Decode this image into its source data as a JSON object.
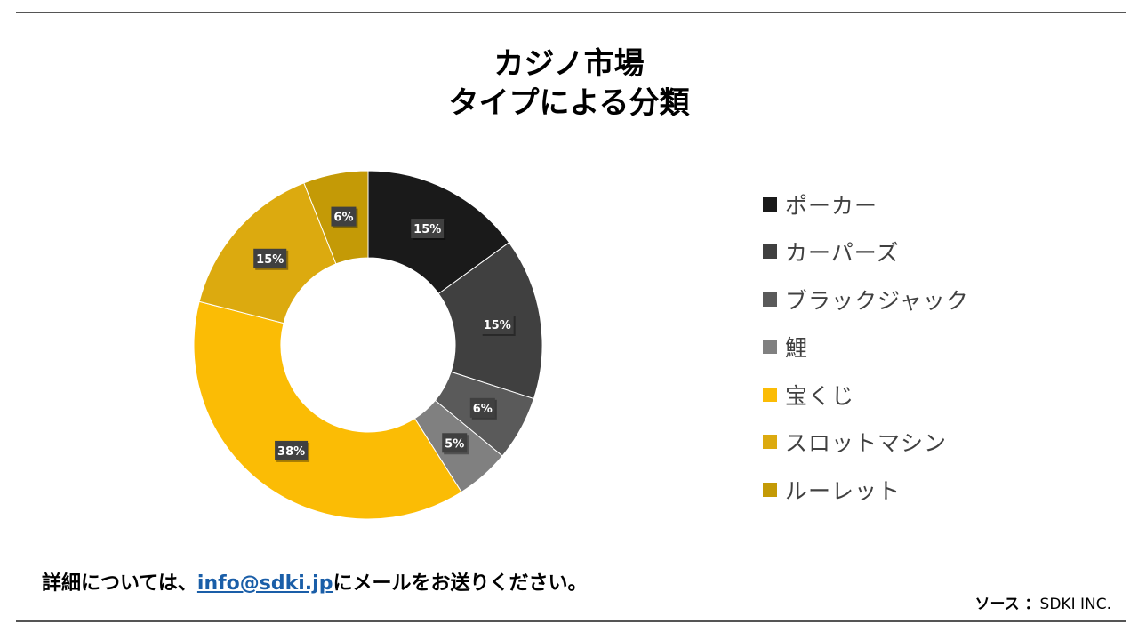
{
  "title_line1": "カジノ市場",
  "title_line2": "タイプによる分類",
  "chart_data": {
    "type": "pie",
    "style": "donut",
    "categories": [
      "ポーカー",
      "カーパーズ",
      "ブラックジャック",
      "鯉",
      "宝くじ",
      "スロットマシン",
      "ルーレット"
    ],
    "values": [
      15,
      15,
      6,
      5,
      38,
      15,
      6
    ],
    "value_labels": [
      "15%",
      "15%",
      "6%",
      "5%",
      "38%",
      "15%",
      "6%"
    ],
    "colors": [
      "#1a1a1a",
      "#404040",
      "#5a5a5a",
      "#808080",
      "#fbbc05",
      "#dcaa0f",
      "#c49a06"
    ],
    "legend_position": "right"
  },
  "footer": {
    "prefix": "詳細については、",
    "email": "info@sdki.jp",
    "suffix": "にメールをお送りください。"
  },
  "source": {
    "label": "ソース ：",
    "value": "SDKI INC."
  }
}
